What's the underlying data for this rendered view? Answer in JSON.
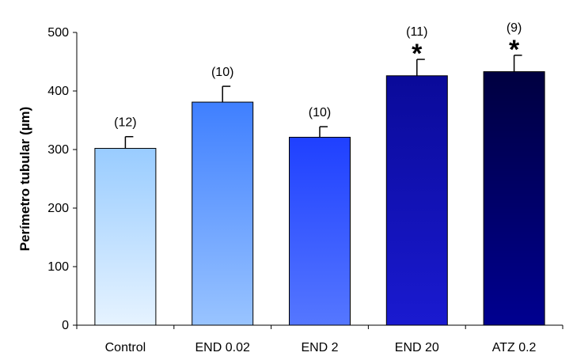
{
  "chart_data": {
    "type": "bar",
    "title": "",
    "xlabel": "",
    "ylabel": "Perímetro tubular (µm)",
    "ylim": [
      0,
      500
    ],
    "yticks": [
      0,
      100,
      200,
      300,
      400,
      500
    ],
    "grid": false,
    "legend": "none",
    "categories": [
      "Control",
      "END 0.02",
      "END 2",
      "END 20",
      "ATZ 0.2"
    ],
    "values": [
      302,
      381,
      321,
      426,
      433
    ],
    "errors": [
      20,
      27,
      18,
      28,
      28
    ],
    "n_labels": [
      "(12)",
      "(10)",
      "(10)",
      "(11)",
      "(9)"
    ],
    "significance": [
      "",
      "",
      "",
      "*",
      "*"
    ],
    "colors": [
      {
        "top": "#99ccff",
        "bottom": "#e6f3ff"
      },
      {
        "top": "#3f7fff",
        "bottom": "#99c4ff"
      },
      {
        "top": "#1f40ff",
        "bottom": "#5577ff"
      },
      {
        "top": "#0a0a99",
        "bottom": "#1a1ad0"
      },
      {
        "top": "#000040",
        "bottom": "#000090"
      }
    ]
  }
}
